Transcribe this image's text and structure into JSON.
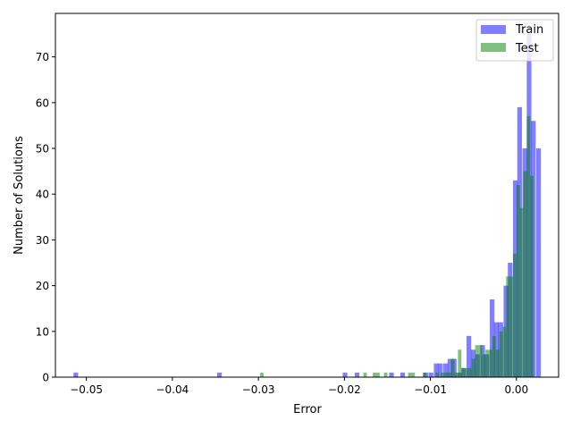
{
  "chart_data": {
    "type": "histogram",
    "xlabel": "Error",
    "ylabel": "Number of Solutions",
    "xlim": [
      -0.0536,
      0.0049
    ],
    "ylim": [
      0,
      79.5
    ],
    "xticks": [
      -0.05,
      -0.04,
      -0.03,
      -0.02,
      -0.01,
      0.0
    ],
    "xtick_labels": [
      "−0.05",
      "−0.04",
      "−0.03",
      "−0.02",
      "−0.01",
      "0.00"
    ],
    "yticks": [
      0,
      10,
      20,
      30,
      40,
      50,
      60,
      70
    ],
    "ytick_labels": [
      "0",
      "10",
      "20",
      "30",
      "40",
      "50",
      "60",
      "70"
    ],
    "legend_position": "top-right",
    "grid": false,
    "series": [
      {
        "name": "Train",
        "color": "#0000ff",
        "alpha": 0.5,
        "bin_width": 0.00054,
        "bins": [
          [
            -0.0515,
            1
          ],
          [
            -0.0348,
            1
          ],
          [
            -0.0202,
            1
          ],
          [
            -0.0188,
            1
          ],
          [
            -0.0148,
            1
          ],
          [
            -0.0135,
            1
          ],
          [
            -0.0108,
            1
          ],
          [
            -0.0102,
            1
          ],
          [
            -0.0096,
            3
          ],
          [
            -0.0091,
            3
          ],
          [
            -0.0085,
            3
          ],
          [
            -0.008,
            4
          ],
          [
            -0.0075,
            4
          ],
          [
            -0.0069,
            1
          ],
          [
            -0.0064,
            2
          ],
          [
            -0.0058,
            9
          ],
          [
            -0.0053,
            6
          ],
          [
            -0.0048,
            5
          ],
          [
            -0.0042,
            7
          ],
          [
            -0.0037,
            5
          ],
          [
            -0.0031,
            17
          ],
          [
            -0.0026,
            12
          ],
          [
            -0.0021,
            12
          ],
          [
            -0.0015,
            20
          ],
          [
            -0.001,
            25
          ],
          [
            -0.0004,
            43
          ],
          [
            0.0001,
            59
          ],
          [
            0.0007,
            50
          ],
          [
            0.0012,
            75
          ],
          [
            0.0017,
            56
          ],
          [
            0.0023,
            50
          ]
        ]
      },
      {
        "name": "Test",
        "color": "#008000",
        "alpha": 0.5,
        "bin_width": 0.0004,
        "bins": [
          [
            -0.0298,
            1
          ],
          [
            -0.0178,
            1
          ],
          [
            -0.0167,
            1
          ],
          [
            -0.0163,
            1
          ],
          [
            -0.0154,
            1
          ],
          [
            -0.0126,
            1
          ],
          [
            -0.0122,
            1
          ],
          [
            -0.0109,
            1
          ],
          [
            -0.0094,
            1
          ],
          [
            -0.0088,
            1
          ],
          [
            -0.0084,
            1
          ],
          [
            -0.008,
            1
          ],
          [
            -0.0076,
            4
          ],
          [
            -0.0072,
            1
          ],
          [
            -0.0068,
            6
          ],
          [
            -0.0064,
            2
          ],
          [
            -0.006,
            2
          ],
          [
            -0.0056,
            2
          ],
          [
            -0.0052,
            4
          ],
          [
            -0.0048,
            7
          ],
          [
            -0.0044,
            7
          ],
          [
            -0.004,
            5
          ],
          [
            -0.0036,
            6
          ],
          [
            -0.0032,
            6
          ],
          [
            -0.0028,
            9
          ],
          [
            -0.0024,
            6
          ],
          [
            -0.002,
            10
          ],
          [
            -0.0016,
            11
          ],
          [
            -0.0012,
            22
          ],
          [
            -0.0008,
            22
          ],
          [
            -0.0004,
            27
          ],
          [
            0.0,
            42
          ],
          [
            0.0004,
            37
          ],
          [
            0.0008,
            45
          ],
          [
            0.0012,
            57
          ],
          [
            0.0016,
            44
          ]
        ]
      }
    ]
  }
}
